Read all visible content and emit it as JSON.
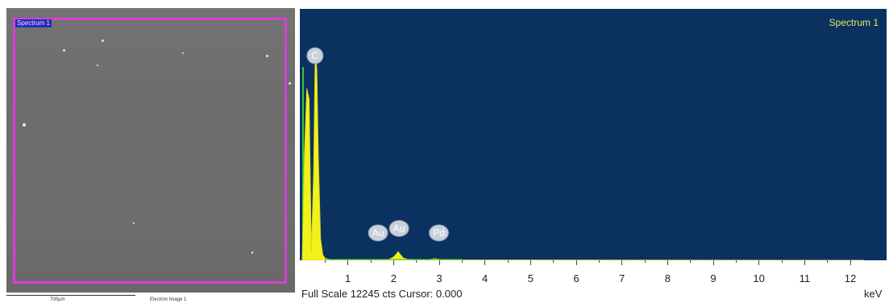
{
  "electron_image": {
    "region_label": "Spectrum 1",
    "scale_bar_label": "700µm",
    "caption": "Electron Image 1",
    "colors": {
      "background": "#6e6e6e",
      "roi_border": "#d63fd6",
      "label_bg": "#2a2ab8"
    }
  },
  "chart_data": {
    "type": "line",
    "title": "Spectrum 1",
    "xlabel": "keV",
    "ylabel": "",
    "xlim": [
      0,
      12.3
    ],
    "ylim": [
      0,
      12245
    ],
    "x_ticks": [
      "1",
      "2",
      "3",
      "4",
      "5",
      "6",
      "7",
      "8",
      "9",
      "10",
      "11",
      "12"
    ],
    "series": [
      {
        "x": [
          0.0,
          0.05,
          0.1,
          0.15,
          0.2,
          0.25,
          0.28,
          0.3,
          0.32,
          0.35,
          0.4,
          0.45,
          0.5,
          0.6,
          1.0,
          1.5,
          1.9,
          2.0,
          2.05,
          2.1,
          2.15,
          2.2,
          2.3,
          2.5,
          2.8,
          2.9,
          3.0,
          3.1,
          3.5,
          12.3
        ],
        "y": [
          0,
          6000,
          9600,
          9000,
          400,
          5000,
          10800,
          11500,
          10600,
          6000,
          1200,
          300,
          100,
          50,
          40,
          40,
          60,
          180,
          320,
          480,
          320,
          150,
          60,
          40,
          50,
          90,
          60,
          40,
          20,
          0
        ]
      }
    ],
    "peak_labels": [
      {
        "text": "C",
        "x": 0.28,
        "y": 10800
      },
      {
        "text": "Au",
        "x": 1.66,
        "y": 900
      },
      {
        "text": "Au",
        "x": 2.12,
        "y": 1150
      },
      {
        "text": "Pd",
        "x": 2.99,
        "y": 900
      }
    ],
    "footer_text": "Full Scale 12245 cts Cursor: 0.000",
    "colors": {
      "background": "#0b3161",
      "fill": "#f2f21a",
      "title": "#e8e85a",
      "label_bg": "#c8d0dc"
    }
  }
}
